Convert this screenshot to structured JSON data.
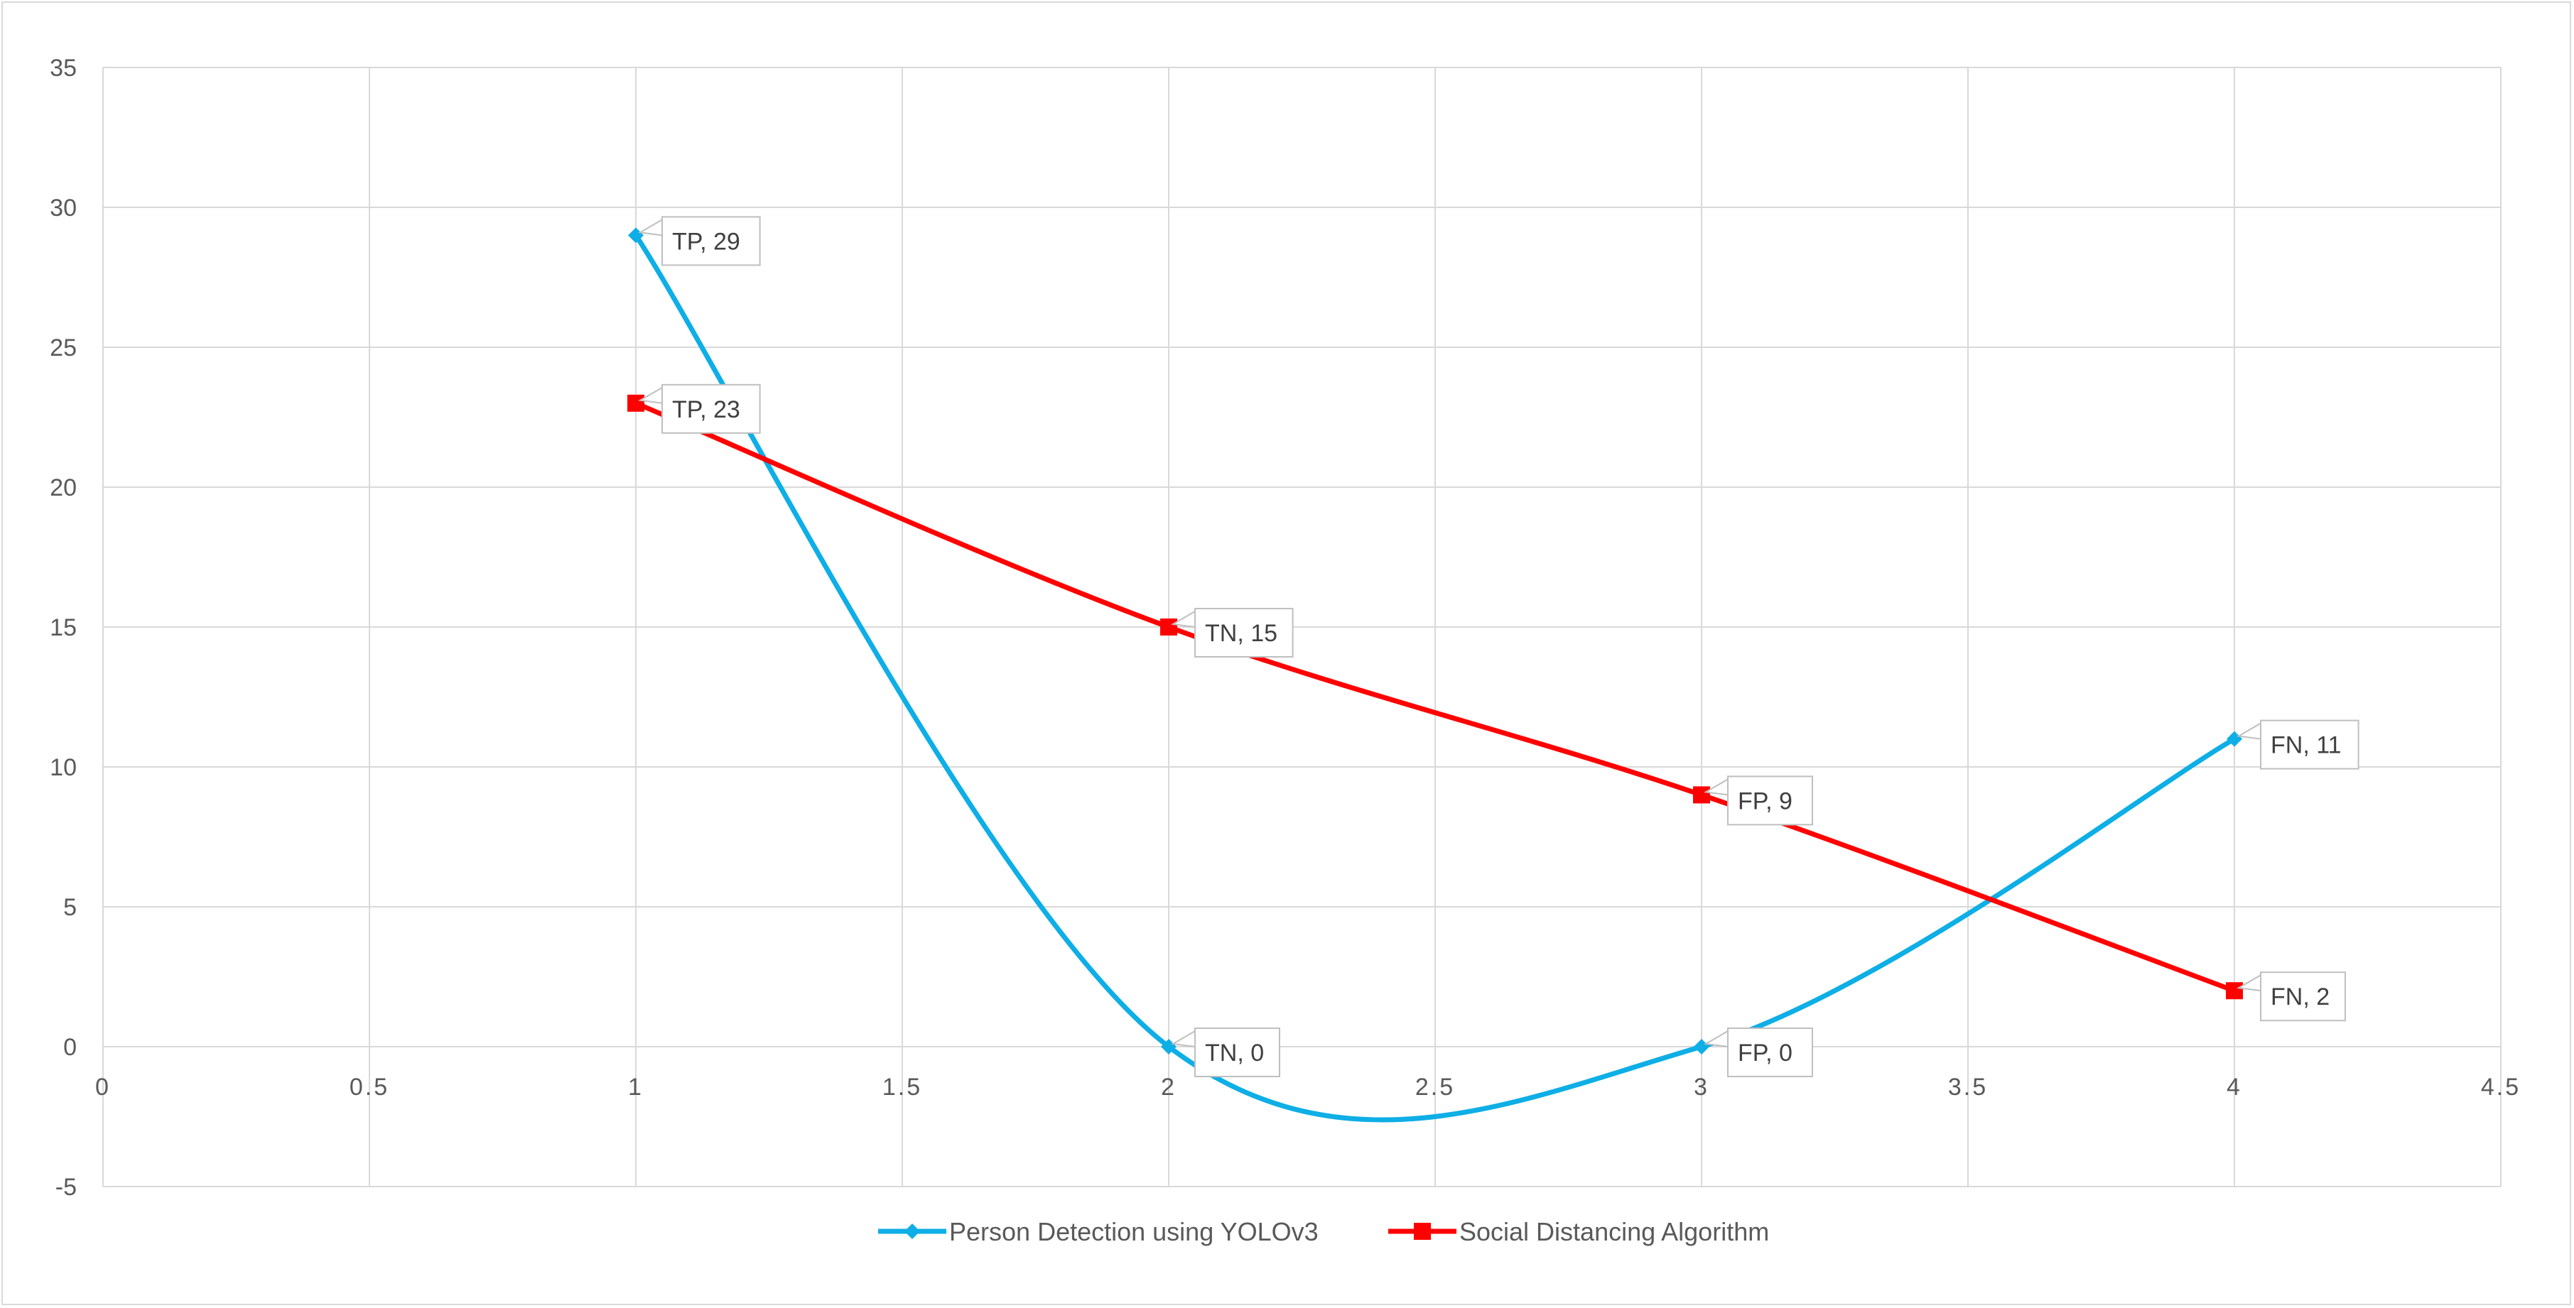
{
  "chart_data": {
    "type": "scatter",
    "title": "",
    "xlabel": "",
    "ylabel": "",
    "xlim": [
      0,
      4.5
    ],
    "ylim": [
      -5,
      35
    ],
    "x_ticks": [
      0,
      0.5,
      1,
      1.5,
      2,
      2.5,
      3,
      3.5,
      4,
      4.5
    ],
    "y_ticks": [
      -5,
      0,
      5,
      10,
      15,
      20,
      25,
      30,
      35
    ],
    "x_tick_labels": [
      "0",
      "0.5",
      "1",
      "1.5",
      "2",
      "2.5",
      "3",
      "3.5",
      "4",
      "4.5"
    ],
    "y_tick_labels": [
      "-5",
      "0",
      "5",
      "10",
      "15",
      "20",
      "25",
      "30",
      "35"
    ],
    "grid": true,
    "legend_position": "bottom",
    "series": [
      {
        "name": "Person Detection using YOLOv3",
        "color": "#0eaee6",
        "marker": "diamond",
        "smooth": true,
        "x": [
          1,
          2,
          3,
          4
        ],
        "y": [
          29,
          0,
          0,
          11
        ],
        "labels": [
          "TP, 29",
          "TN, 0",
          "FP, 0",
          "FN, 11"
        ]
      },
      {
        "name": "Social Distancing Algorithm",
        "color": "#ff0000",
        "marker": "square",
        "smooth": true,
        "x": [
          1,
          2,
          3,
          4
        ],
        "y": [
          23,
          15,
          9,
          2
        ],
        "labels": [
          "TP, 23",
          "TN, 15",
          "FP, 9",
          "FN, 2"
        ]
      }
    ]
  }
}
